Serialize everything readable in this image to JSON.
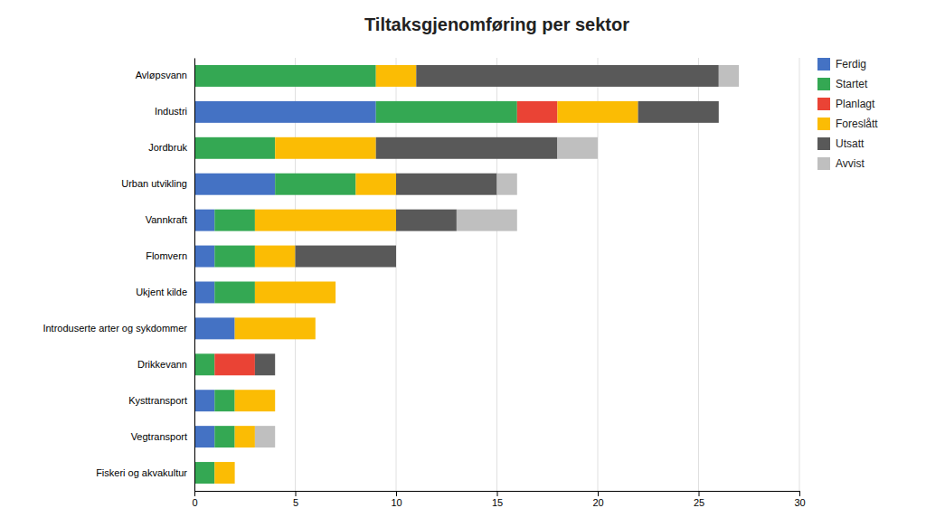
{
  "chart_data": {
    "type": "bar",
    "orientation": "horizontal",
    "stacked": true,
    "title": "Tiltaksgjenomføring per sektor",
    "categories": [
      "Avløpsvann",
      "Industri",
      "Jordbruk",
      "Urban utvikling",
      "Vannkraft",
      "Flomvern",
      "Ukjent kilde",
      "Introduserte arter og sykdommer",
      "Drikkevann",
      "Kysttransport",
      "Vegtransport",
      "Fiskeri og akvakultur"
    ],
    "series": [
      {
        "name": "Ferdig",
        "color": "#4472C4",
        "values": [
          0,
          9,
          0,
          4,
          1,
          1,
          1,
          2,
          0,
          1,
          1,
          0
        ]
      },
      {
        "name": "Startet",
        "color": "#34A853",
        "values": [
          9,
          7,
          4,
          4,
          2,
          2,
          2,
          0,
          1,
          1,
          1,
          1
        ]
      },
      {
        "name": "Planlagt",
        "color": "#EA4335",
        "values": [
          0,
          2,
          0,
          0,
          0,
          0,
          0,
          0,
          2,
          0,
          0,
          0
        ]
      },
      {
        "name": "Foreslått",
        "color": "#FBBC04",
        "values": [
          2,
          4,
          5,
          2,
          7,
          2,
          4,
          4,
          0,
          2,
          1,
          1
        ]
      },
      {
        "name": "Utsatt",
        "color": "#595959",
        "values": [
          15,
          4,
          9,
          5,
          3,
          5,
          0,
          0,
          1,
          0,
          0,
          0
        ]
      },
      {
        "name": "Avvist",
        "color": "#BFBFBF",
        "values": [
          1,
          0,
          2,
          1,
          3,
          0,
          0,
          0,
          0,
          0,
          1,
          0
        ]
      }
    ],
    "xlim": [
      0,
      30
    ],
    "xticks": [
      0,
      5,
      10,
      15,
      20,
      25,
      30
    ],
    "grid": true,
    "legend": "right"
  }
}
